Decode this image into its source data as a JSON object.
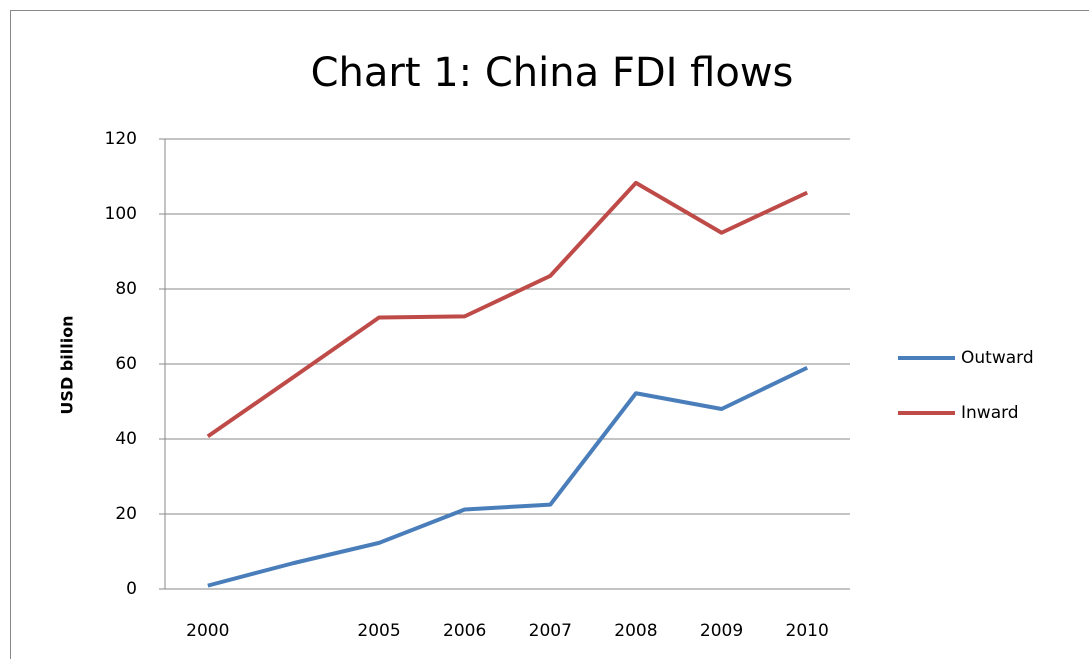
{
  "chart_data": {
    "type": "line",
    "title": "Chart 1: China FDI flows",
    "y_label": "USD billion",
    "categories": [
      "2000",
      null,
      "2005",
      "2006",
      "2007",
      "2008",
      "2009",
      "2010"
    ],
    "series": [
      {
        "name": "Outward",
        "color": "#4a7ebb",
        "values": [
          0.9,
          6.9,
          12.3,
          21.2,
          22.5,
          52.2,
          48.0,
          59.0
        ]
      },
      {
        "name": "Inward",
        "color": "#be4b48",
        "values": [
          40.7,
          56.5,
          72.4,
          72.7,
          83.5,
          108.3,
          95.0,
          105.7
        ]
      }
    ],
    "ylim": [
      0,
      120
    ],
    "yticks": [
      0,
      20,
      40,
      60,
      80,
      100,
      120
    ],
    "grid": true,
    "legend": "right"
  }
}
